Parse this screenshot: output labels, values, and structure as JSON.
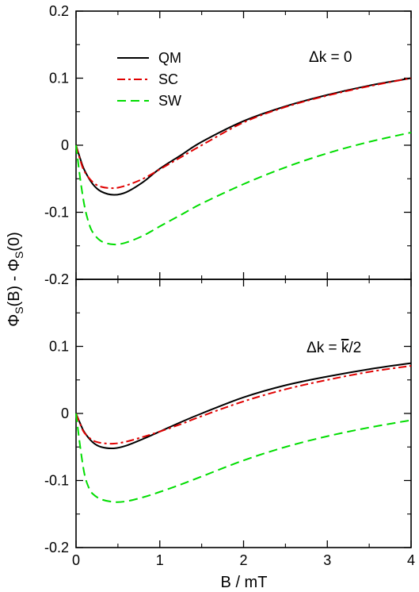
{
  "colors": {
    "QM": "#000000",
    "SC": "#e00000",
    "SW": "#00dd00"
  },
  "chart_data": {
    "type": "line",
    "xlabel": "B / mT",
    "ylabel": "ΦS(B) - ΦS(0)",
    "ylabel_parts": {
      "phi1": "Φ",
      "sub1": "S",
      "mid": "(B) - ",
      "phi2": "Φ",
      "sub2": "S",
      "end": "(0)"
    },
    "xlim": [
      0,
      4
    ],
    "x_ticks": [
      0,
      1,
      2,
      3,
      4
    ],
    "x_tick_labels": [
      "0",
      "1",
      "2",
      "3",
      "4"
    ],
    "legend_location": "upper-left of top panel",
    "panels": [
      {
        "annotation": "Δk = 0",
        "ylim": [
          -0.2,
          0.2
        ],
        "y_ticks": [
          -0.2,
          -0.1,
          0,
          0.1,
          0.2
        ],
        "y_tick_labels": [
          "-0.2",
          "-0.1",
          "0",
          "0.1",
          "0.2"
        ],
        "series": [
          {
            "name": "QM",
            "style": "solid",
            "x": [
              0,
              0.05,
              0.1,
              0.2,
              0.3,
              0.45,
              0.6,
              0.8,
              1.0,
              1.25,
              1.5,
              2.0,
              2.5,
              3.0,
              3.5,
              4.0
            ],
            "values": [
              0,
              -0.02,
              -0.037,
              -0.058,
              -0.069,
              -0.074,
              -0.07,
              -0.055,
              -0.035,
              -0.015,
              0.005,
              0.036,
              0.058,
              0.075,
              0.089,
              0.1
            ]
          },
          {
            "name": "SC",
            "style": "dashdot",
            "x": [
              0,
              0.05,
              0.1,
              0.2,
              0.3,
              0.45,
              0.6,
              0.8,
              1.0,
              1.25,
              1.5,
              2.0,
              2.5,
              3.0,
              3.5,
              4.0
            ],
            "values": [
              0,
              -0.022,
              -0.039,
              -0.055,
              -0.062,
              -0.064,
              -0.06,
              -0.05,
              -0.036,
              -0.018,
              0.0,
              0.034,
              0.057,
              0.074,
              0.088,
              0.1
            ]
          },
          {
            "name": "SW",
            "style": "dashed",
            "x": [
              0,
              0.05,
              0.1,
              0.15,
              0.2,
              0.3,
              0.45,
              0.6,
              0.8,
              1.0,
              1.25,
              1.5,
              2.0,
              2.5,
              3.0,
              3.5,
              4.0
            ],
            "values": [
              0,
              -0.05,
              -0.09,
              -0.115,
              -0.13,
              -0.143,
              -0.148,
              -0.145,
              -0.135,
              -0.121,
              -0.104,
              -0.087,
              -0.058,
              -0.033,
              -0.012,
              0.005,
              0.019
            ]
          }
        ]
      },
      {
        "annotation": "Δk = k/2",
        "annotation_parts": {
          "pre": "Δk = ",
          "k": "k",
          "post": "/2"
        },
        "ylim": [
          -0.2,
          0.2
        ],
        "y_ticks": [
          -0.2,
          -0.1,
          0,
          0.1,
          0.2
        ],
        "y_tick_labels": [
          "-0.2",
          "-0.1",
          "0",
          "0.1",
          ""
        ],
        "series": [
          {
            "name": "QM",
            "style": "solid",
            "x": [
              0,
              0.05,
              0.1,
              0.2,
              0.3,
              0.45,
              0.6,
              0.8,
              1.0,
              1.25,
              1.5,
              2.0,
              2.5,
              3.0,
              3.5,
              4.0
            ],
            "values": [
              0,
              -0.015,
              -0.028,
              -0.043,
              -0.05,
              -0.052,
              -0.048,
              -0.038,
              -0.027,
              -0.013,
              0.0,
              0.024,
              0.042,
              0.055,
              0.066,
              0.075
            ]
          },
          {
            "name": "SC",
            "style": "dashdot",
            "x": [
              0,
              0.05,
              0.1,
              0.2,
              0.3,
              0.45,
              0.6,
              0.8,
              1.0,
              1.25,
              1.5,
              2.0,
              2.5,
              3.0,
              3.5,
              4.0
            ],
            "values": [
              0,
              -0.016,
              -0.029,
              -0.04,
              -0.044,
              -0.045,
              -0.042,
              -0.035,
              -0.027,
              -0.016,
              -0.004,
              0.018,
              0.036,
              0.05,
              0.062,
              0.071
            ]
          },
          {
            "name": "SW",
            "style": "dashed",
            "x": [
              0,
              0.05,
              0.1,
              0.15,
              0.2,
              0.3,
              0.45,
              0.6,
              0.8,
              1.0,
              1.25,
              1.5,
              2.0,
              2.5,
              3.0,
              3.5,
              4.0
            ],
            "values": [
              0,
              -0.05,
              -0.09,
              -0.11,
              -0.12,
              -0.128,
              -0.132,
              -0.131,
              -0.125,
              -0.117,
              -0.106,
              -0.094,
              -0.07,
              -0.05,
              -0.034,
              -0.021,
              -0.01
            ]
          }
        ]
      }
    ]
  }
}
